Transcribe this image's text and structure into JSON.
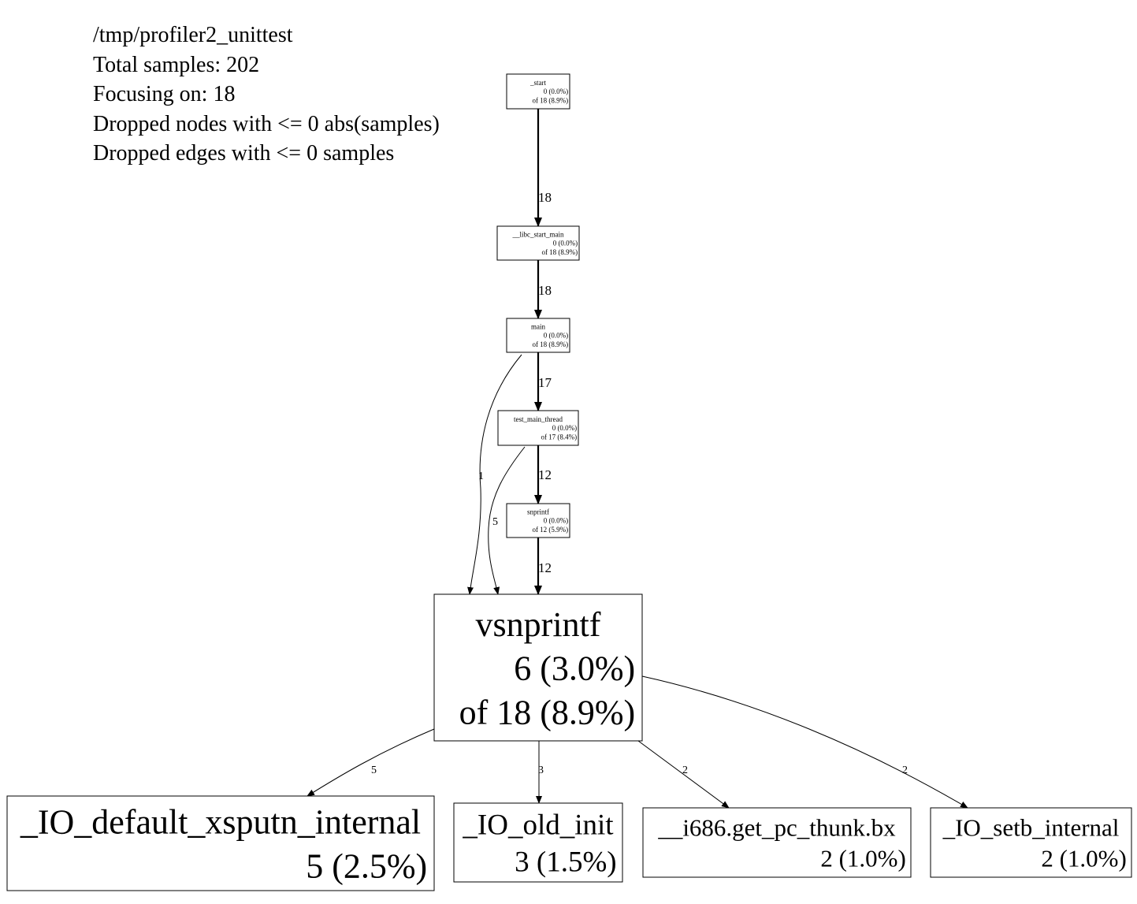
{
  "legend": {
    "lines": [
      "/tmp/profiler2_unittest",
      "Total samples: 202",
      "Focusing on: 18",
      "Dropped nodes with <= 0 abs(samples)",
      "Dropped edges with <= 0 samples"
    ]
  },
  "nodes": [
    {
      "id": "start",
      "name": "_start",
      "flat": "0 (0.0%)",
      "cum": "of 18 (8.9%)"
    },
    {
      "id": "libc_start_main",
      "name": "__libc_start_main",
      "flat": "0 (0.0%)",
      "cum": "of 18 (8.9%)"
    },
    {
      "id": "main",
      "name": "main",
      "flat": "0 (0.0%)",
      "cum": "of 18 (8.9%)"
    },
    {
      "id": "test_main_thread",
      "name": "test_main_thread",
      "flat": "0 (0.0%)",
      "cum": "of 17 (8.4%)"
    },
    {
      "id": "snprintf",
      "name": "snprintf",
      "flat": "0 (0.0%)",
      "cum": "of 12 (5.9%)"
    },
    {
      "id": "vsnprintf",
      "name": "vsnprintf",
      "flat": "6 (3.0%)",
      "cum": "of 18 (8.9%)"
    },
    {
      "id": "io_default_xsputn_internal",
      "name": "_IO_default_xsputn_internal",
      "flat": "5 (2.5%)"
    },
    {
      "id": "io_old_init",
      "name": "_IO_old_init",
      "flat": "3 (1.5%)"
    },
    {
      "id": "i686_get_pc_thunk_bx",
      "name": "__i686.get_pc_thunk.bx",
      "flat": "2 (1.0%)"
    },
    {
      "id": "io_setb_internal",
      "name": "_IO_setb_internal",
      "flat": "2 (1.0%)"
    }
  ],
  "edges": [
    {
      "from": "start",
      "to": "libc_start_main",
      "samples": "18"
    },
    {
      "from": "libc_start_main",
      "to": "main",
      "samples": "18"
    },
    {
      "from": "main",
      "to": "test_main_thread",
      "samples": "17"
    },
    {
      "from": "main",
      "to": "vsnprintf",
      "samples": "1"
    },
    {
      "from": "test_main_thread",
      "to": "snprintf",
      "samples": "12"
    },
    {
      "from": "test_main_thread",
      "to": "vsnprintf",
      "samples": "5"
    },
    {
      "from": "snprintf",
      "to": "vsnprintf",
      "samples": "12"
    },
    {
      "from": "vsnprintf",
      "to": "io_default_xsputn_internal",
      "samples": "5"
    },
    {
      "from": "vsnprintf",
      "to": "io_old_init",
      "samples": "3"
    },
    {
      "from": "vsnprintf",
      "to": "i686_get_pc_thunk_bx",
      "samples": "2"
    },
    {
      "from": "vsnprintf",
      "to": "io_setb_internal",
      "samples": "2"
    }
  ]
}
